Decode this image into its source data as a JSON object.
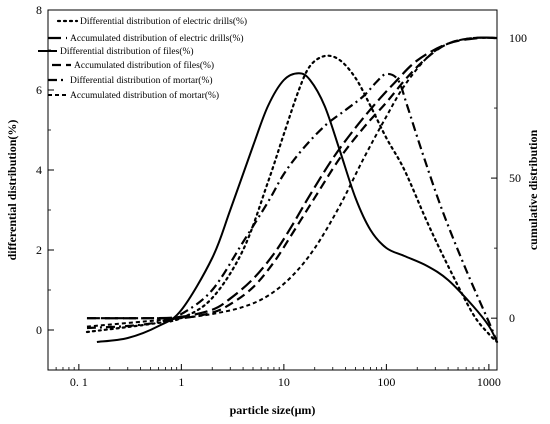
{
  "chart_data": {
    "type": "line",
    "xlabel": "particle size(μm)",
    "ylabel_left": "differential distribution(%)",
    "ylabel_right": "cumulative distribution",
    "x_scale": "log",
    "xlim": [
      0.05,
      1200
    ],
    "ylim_left": [
      -1,
      8
    ],
    "ylim_right": [
      -18.5,
      110
    ],
    "x_ticks": [
      0.1,
      1,
      10,
      100,
      1000
    ],
    "x_tick_labels": [
      "0. 1",
      "1",
      "10",
      "100",
      "1000"
    ],
    "y_left_ticks": [
      0,
      2,
      4,
      6,
      8
    ],
    "y_left_tick_labels": [
      "0",
      "2",
      "4",
      "6",
      "8"
    ],
    "y_right_ticks": [
      0,
      50,
      100
    ],
    "y_right_tick_labels": [
      "0",
      "50",
      "100"
    ],
    "grid": false,
    "legend_position": "top-left",
    "series": [
      {
        "name": "Differential distribution of electric drills(%)",
        "axis": "left",
        "style": "dot",
        "points": [
          [
            0.12,
            -0.05
          ],
          [
            0.5,
            0.15
          ],
          [
            1,
            0.3
          ],
          [
            2,
            0.8
          ],
          [
            4,
            2.0
          ],
          [
            7,
            3.7
          ],
          [
            10,
            4.9
          ],
          [
            14,
            6.0
          ],
          [
            18,
            6.6
          ],
          [
            25,
            6.85
          ],
          [
            35,
            6.75
          ],
          [
            50,
            6.3
          ],
          [
            70,
            5.6
          ],
          [
            100,
            4.8
          ],
          [
            150,
            4.0
          ],
          [
            250,
            2.7
          ],
          [
            400,
            1.6
          ],
          [
            700,
            0.4
          ],
          [
            1000,
            -0.1
          ],
          [
            1200,
            -0.3
          ]
        ]
      },
      {
        "name": "Accumulated distribution of electric drills(%)",
        "axis": "right",
        "style": "long-dash",
        "points": [
          [
            0.12,
            0
          ],
          [
            0.5,
            0
          ],
          [
            1,
            0.5
          ],
          [
            2,
            3
          ],
          [
            3,
            7
          ],
          [
            5,
            14
          ],
          [
            8,
            23
          ],
          [
            12,
            33
          ],
          [
            18,
            44
          ],
          [
            30,
            57
          ],
          [
            50,
            68
          ],
          [
            80,
            77
          ],
          [
            120,
            84
          ],
          [
            200,
            92
          ],
          [
            400,
            98
          ],
          [
            800,
            100
          ],
          [
            1200,
            100
          ]
        ]
      },
      {
        "name": "Differential distribution of files(%)",
        "axis": "left",
        "style": "solid",
        "points": [
          [
            0.15,
            -0.3
          ],
          [
            0.3,
            -0.2
          ],
          [
            0.6,
            0.1
          ],
          [
            1,
            0.5
          ],
          [
            2,
            1.8
          ],
          [
            3,
            3.0
          ],
          [
            5,
            4.6
          ],
          [
            7,
            5.6
          ],
          [
            10,
            6.25
          ],
          [
            14,
            6.42
          ],
          [
            18,
            6.25
          ],
          [
            25,
            5.6
          ],
          [
            35,
            4.5
          ],
          [
            50,
            3.3
          ],
          [
            70,
            2.5
          ],
          [
            100,
            2.05
          ],
          [
            150,
            1.85
          ],
          [
            250,
            1.6
          ],
          [
            400,
            1.25
          ],
          [
            700,
            0.6
          ],
          [
            1000,
            0.1
          ],
          [
            1200,
            -0.3
          ]
        ]
      },
      {
        "name": "Accumulated distribution of files(%)",
        "axis": "right",
        "style": "dash",
        "points": [
          [
            0.12,
            0
          ],
          [
            0.5,
            0
          ],
          [
            1,
            0
          ],
          [
            2,
            2
          ],
          [
            3,
            5
          ],
          [
            5,
            11
          ],
          [
            8,
            20
          ],
          [
            12,
            30
          ],
          [
            20,
            43
          ],
          [
            35,
            57
          ],
          [
            60,
            68
          ],
          [
            100,
            77
          ],
          [
            160,
            86
          ],
          [
            250,
            93
          ],
          [
            400,
            98
          ],
          [
            700,
            100
          ],
          [
            1200,
            100
          ]
        ]
      },
      {
        "name": "Differential distribution of mortar(%)",
        "axis": "left",
        "style": "dash-dot",
        "points": [
          [
            0.12,
            0.05
          ],
          [
            0.3,
            0.1
          ],
          [
            0.6,
            0.2
          ],
          [
            1,
            0.4
          ],
          [
            2,
            1.0
          ],
          [
            4,
            2.2
          ],
          [
            7,
            3.2
          ],
          [
            10,
            3.9
          ],
          [
            15,
            4.5
          ],
          [
            25,
            5.1
          ],
          [
            40,
            5.5
          ],
          [
            60,
            5.85
          ],
          [
            80,
            6.2
          ],
          [
            100,
            6.4
          ],
          [
            130,
            6.25
          ],
          [
            160,
            5.6
          ],
          [
            220,
            4.5
          ],
          [
            350,
            3.0
          ],
          [
            600,
            1.5
          ],
          [
            1000,
            0.2
          ],
          [
            1200,
            -0.3
          ]
        ]
      },
      {
        "name": "Accumulated distribution of mortar(%)",
        "axis": "right",
        "style": "short-dash",
        "points": [
          [
            0.12,
            -3
          ],
          [
            0.5,
            -1
          ],
          [
            1,
            0
          ],
          [
            2,
            1.5
          ],
          [
            4,
            4
          ],
          [
            7,
            8
          ],
          [
            12,
            15
          ],
          [
            20,
            25
          ],
          [
            35,
            40
          ],
          [
            60,
            57
          ],
          [
            100,
            72
          ],
          [
            150,
            83
          ],
          [
            250,
            93
          ],
          [
            400,
            98
          ],
          [
            700,
            100
          ],
          [
            1200,
            100
          ]
        ]
      }
    ]
  }
}
